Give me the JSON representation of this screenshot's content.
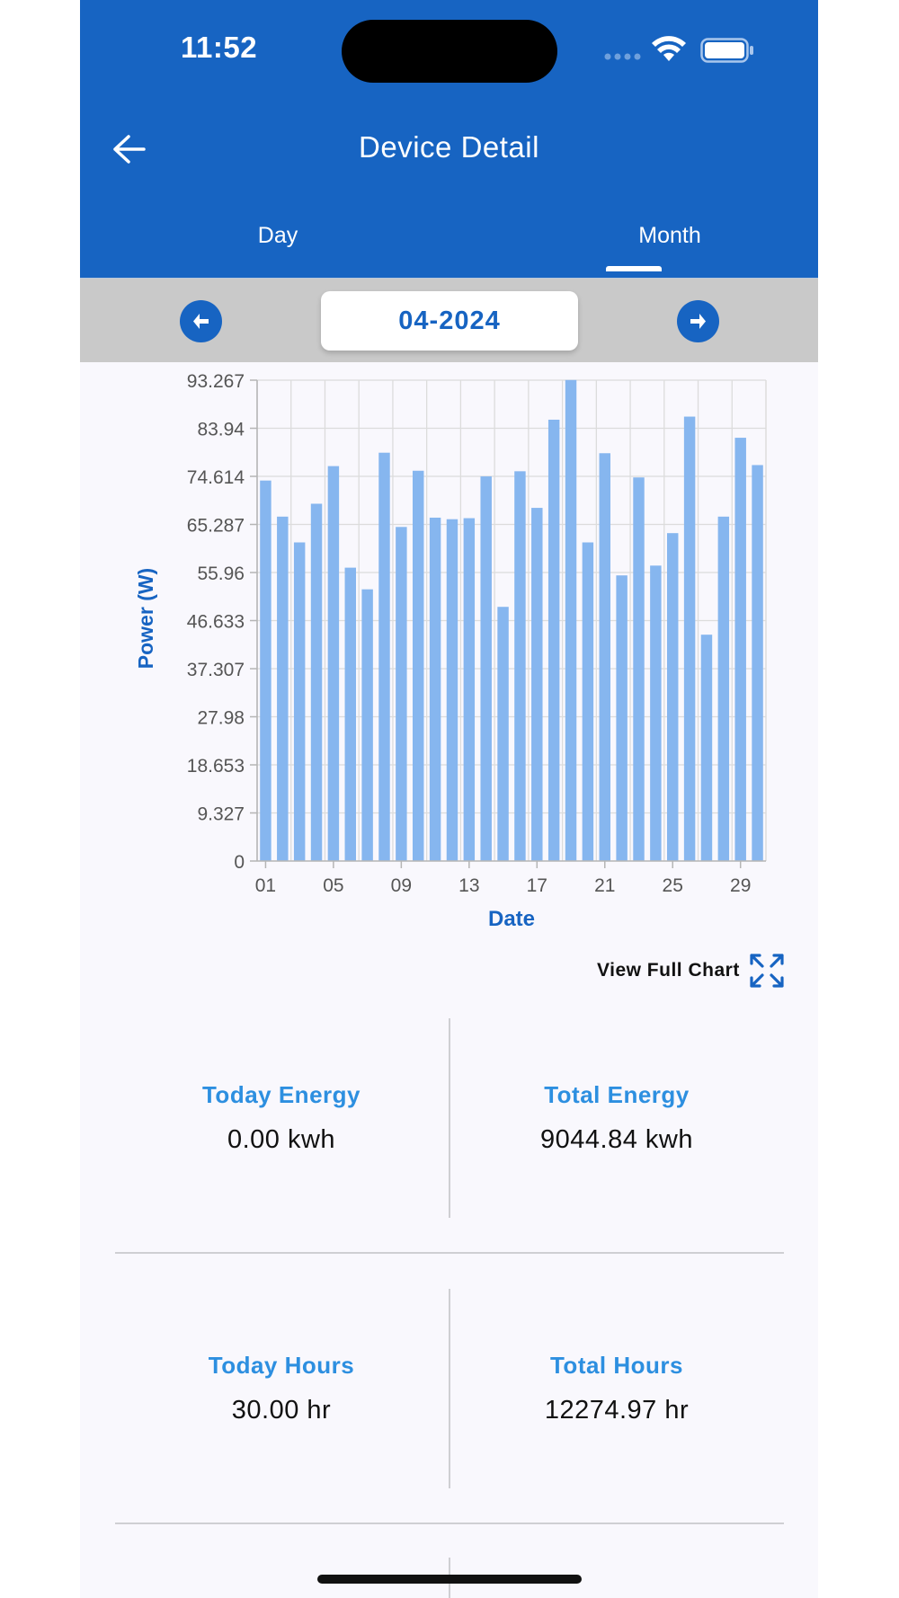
{
  "status_bar": {
    "time": "11:52"
  },
  "header": {
    "title": "Device Detail"
  },
  "tabs": [
    {
      "label": "Day",
      "active": false
    },
    {
      "label": "Month",
      "active": true
    }
  ],
  "date_selector": {
    "value": "04-2024"
  },
  "chart_data": {
    "type": "bar",
    "xlabel": "Date",
    "ylabel": "Power (W)",
    "ylim": [
      0,
      93.267
    ],
    "yticks": [
      "0",
      "9.327",
      "18.653",
      "27.98",
      "37.307",
      "46.633",
      "55.96",
      "65.287",
      "74.614",
      "83.94",
      "93.267"
    ],
    "xticks": [
      "01",
      "05",
      "09",
      "13",
      "17",
      "21",
      "25",
      "29"
    ],
    "categories": [
      "01",
      "02",
      "03",
      "04",
      "05",
      "06",
      "07",
      "08",
      "09",
      "10",
      "11",
      "12",
      "13",
      "14",
      "15",
      "16",
      "17",
      "18",
      "19",
      "20",
      "21",
      "22",
      "23",
      "24",
      "25",
      "26",
      "27",
      "28",
      "29",
      "30"
    ],
    "values": [
      73.8,
      66.8,
      61.8,
      69.3,
      76.6,
      56.9,
      52.7,
      79.2,
      64.8,
      75.7,
      66.6,
      66.3,
      66.5,
      74.6,
      49.3,
      75.6,
      68.5,
      85.6,
      93.3,
      61.8,
      79.1,
      55.4,
      74.4,
      57.3,
      63.6,
      86.2,
      43.9,
      66.8,
      82.1,
      76.8
    ],
    "color": "#86b6ef",
    "axis_label_color": "#1764c2"
  },
  "view_full_chart": {
    "label": "View Full Chart"
  },
  "stats": {
    "today_energy": {
      "label": "Today Energy",
      "value": "0.00 kwh"
    },
    "total_energy": {
      "label": "Total Energy",
      "value": "9044.84 kwh"
    },
    "today_hours": {
      "label": "Today Hours",
      "value": "30.00 hr"
    },
    "total_hours": {
      "label": "Total Hours",
      "value": "12274.97 hr"
    }
  },
  "colors": {
    "primary": "#1764c2",
    "stat_label": "#2d8fe0",
    "bar": "#86b6ef"
  }
}
